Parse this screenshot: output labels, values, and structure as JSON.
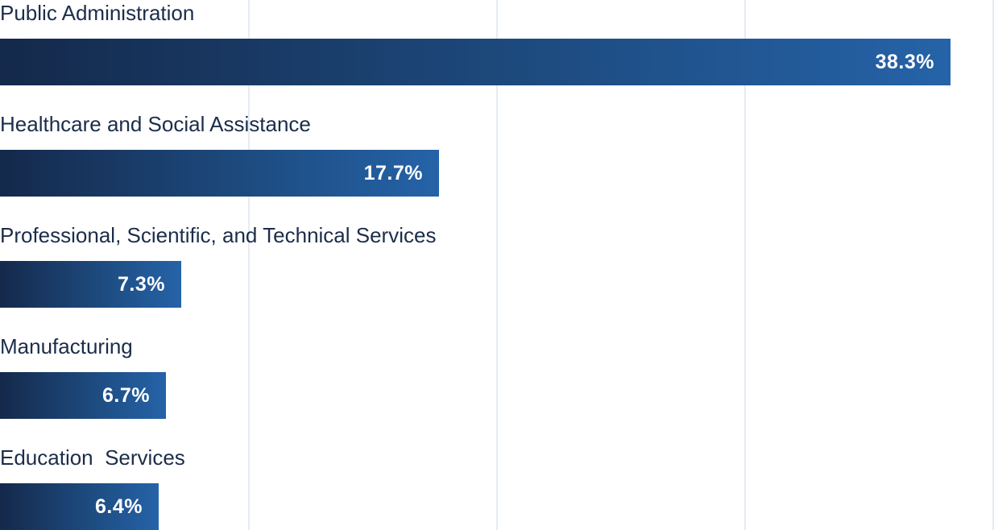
{
  "colors": {
    "bar_start": "#14294b",
    "bar_end": "#2563a8",
    "label_text": "#1b2d4a",
    "value_text": "#ffffff",
    "gridline": "#e4ecf3"
  },
  "chart_data": {
    "type": "bar",
    "orientation": "horizontal",
    "categories": [
      "Public Administration",
      "Healthcare and Social Assistance",
      "Professional, Scientific, and Technical Services",
      "Manufacturing",
      "Education  Services"
    ],
    "values": [
      38.3,
      17.7,
      7.3,
      6.7,
      6.4
    ],
    "value_labels": [
      "38.3%",
      "17.7%",
      "7.3%",
      "6.7%",
      "6.4%"
    ],
    "unit": "%",
    "xlim": [
      0,
      40
    ],
    "grid": true,
    "gridlines": [
      10,
      20,
      30,
      40
    ]
  }
}
